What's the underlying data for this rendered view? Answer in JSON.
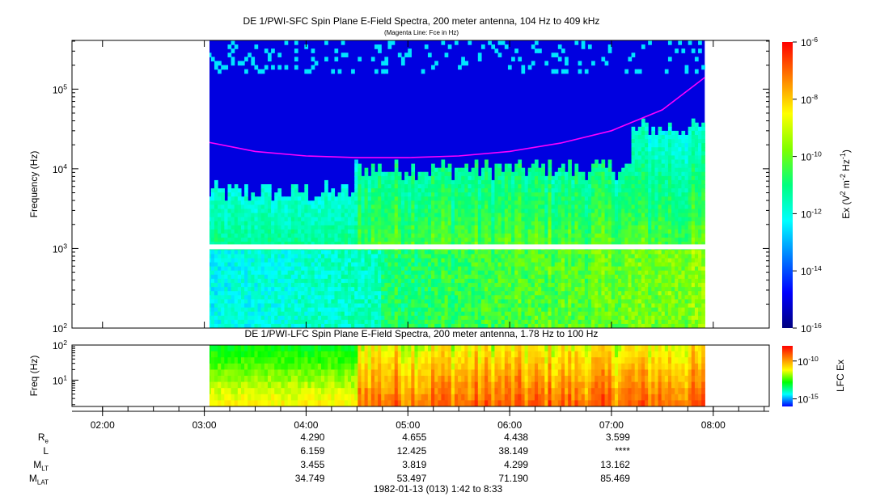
{
  "chart_data": [
    {
      "type": "heatmap",
      "title": "DE 1/PWI-SFC  Spin Plane E-Field Spectra, 200 meter antenna, 104 Hz to 409 kHz",
      "subtitle": "(Magenta Line: Fce in Hz)",
      "ylabel": "Frequency (Hz)",
      "y_scale": "log",
      "ylim": [
        100,
        409000
      ],
      "y_ticks": [
        "10^2",
        "10^3",
        "10^4",
        "10^5"
      ],
      "colorbar": {
        "label": "Ex (V^2 m^-2 Hz^-1)",
        "scale": "log",
        "range": [
          1e-16,
          1e-06
        ],
        "ticks": [
          "10^-6",
          "10^-8",
          "10^-10",
          "10^-12",
          "10^-14",
          "10^-16"
        ],
        "colormap": [
          "#00007f",
          "#0000ff",
          "#007fff",
          "#00ffff",
          "#00ff7f",
          "#7fff00",
          "#ffff00",
          "#ff7f00",
          "#ff0000"
        ]
      },
      "data_start_time": "03:00",
      "data_end_time": "07:55",
      "gap_frequency_hz": 1000,
      "fce_line": {
        "color": "#ff00ff",
        "times": [
          "03:00",
          "03:30",
          "04:00",
          "04:30",
          "05:00",
          "05:30",
          "06:00",
          "06:30",
          "07:00",
          "07:30",
          "07:55"
        ],
        "values_hz": [
          22000,
          16500,
          14500,
          13800,
          13800,
          14500,
          16500,
          21000,
          30000,
          55000,
          140000
        ]
      }
    },
    {
      "type": "heatmap",
      "title": "DE 1/PWI-LFC  Spin Plane E-Field Spectra, 200 meter antenna, 1.78 Hz to 100 Hz",
      "ylabel": "Freq (Hz)",
      "y_scale": "log",
      "ylim": [
        1.78,
        100
      ],
      "y_ticks": [
        "10^1",
        "10^2"
      ],
      "colorbar": {
        "label": "LFC Ex",
        "scale": "log",
        "range": [
          1e-16,
          1e-08
        ],
        "ticks": [
          "10^-10",
          "10^-15"
        ],
        "colormap": [
          "#0000ff",
          "#00ffff",
          "#00ff00",
          "#ffff00",
          "#ff7f00",
          "#ff0000"
        ]
      },
      "data_start_time": "03:00",
      "data_end_time": "07:55"
    }
  ],
  "time_axis": {
    "ticks": [
      "02:00",
      "03:00",
      "04:00",
      "05:00",
      "06:00",
      "07:00",
      "08:00"
    ],
    "range": [
      "01:42",
      "08:33"
    ]
  },
  "ephemeris": {
    "rows": [
      {
        "label": "R",
        "sub": "e",
        "values": [
          "4.290",
          "4.655",
          "4.438",
          "3.599"
        ]
      },
      {
        "label": "L",
        "sub": "",
        "values": [
          "6.159",
          "12.425",
          "38.149",
          "****"
        ]
      },
      {
        "label": "M",
        "sub": "LT",
        "values": [
          "3.455",
          "3.819",
          "4.299",
          "13.162"
        ]
      },
      {
        "label": "M",
        "sub": "LAT",
        "values": [
          "34.749",
          "53.497",
          "71.190",
          "85.469"
        ]
      }
    ]
  },
  "footer": "1982-01-13 (013) 1:42 to 8:33"
}
